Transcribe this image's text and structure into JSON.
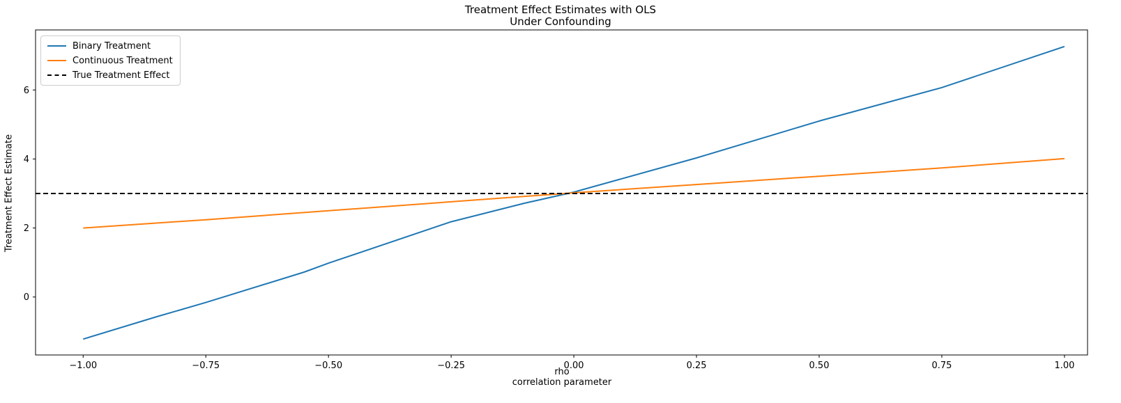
{
  "chart_data": {
    "type": "line",
    "title_line1": "Treatment Effect Estimates with OLS",
    "title_line2": "Under Confounding",
    "ylabel": "Treatment Effect Estimate",
    "xlabel_line1": "rho",
    "xlabel_line2": "correlation parameter",
    "xlim": [
      -1.097,
      1.047
    ],
    "ylim": [
      -1.68,
      7.74
    ],
    "grid": false,
    "legend_position": "upper left",
    "xticks": [
      {
        "v": -1.0,
        "label": "−1.00"
      },
      {
        "v": -0.75,
        "label": "−0.75"
      },
      {
        "v": -0.5,
        "label": "−0.50"
      },
      {
        "v": -0.25,
        "label": "−0.25"
      },
      {
        "v": 0.0,
        "label": "0.00"
      },
      {
        "v": 0.25,
        "label": "0.25"
      },
      {
        "v": 0.5,
        "label": "0.50"
      },
      {
        "v": 0.75,
        "label": "0.75"
      },
      {
        "v": 1.0,
        "label": "1.00"
      }
    ],
    "yticks": [
      {
        "v": 0,
        "label": "0"
      },
      {
        "v": 2,
        "label": "2"
      },
      {
        "v": 4,
        "label": "4"
      },
      {
        "v": 6,
        "label": "6"
      }
    ],
    "series": [
      {
        "name": "Binary Treatment",
        "color": "#1f77b4",
        "style": "solid",
        "points": [
          [
            -1.0,
            -1.22
          ],
          [
            -0.85,
            -0.57
          ],
          [
            -0.75,
            -0.16
          ],
          [
            -0.55,
            0.72
          ],
          [
            -0.5,
            0.98
          ],
          [
            -0.25,
            2.18
          ],
          [
            -0.1,
            2.72
          ],
          [
            0.0,
            3.04
          ],
          [
            0.25,
            4.03
          ],
          [
            0.5,
            5.1
          ],
          [
            0.75,
            6.07
          ],
          [
            1.0,
            7.26
          ]
        ]
      },
      {
        "name": "Continuous Treatment",
        "color": "#ff7f0e",
        "style": "solid",
        "points": [
          [
            -1.0,
            2.0
          ],
          [
            -0.75,
            2.24
          ],
          [
            -0.5,
            2.5
          ],
          [
            -0.25,
            2.76
          ],
          [
            0.0,
            3.02
          ],
          [
            0.25,
            3.26
          ],
          [
            0.5,
            3.5
          ],
          [
            0.75,
            3.74
          ],
          [
            1.0,
            4.01
          ]
        ]
      },
      {
        "name": "True Treatment Effect",
        "color": "#000000",
        "style": "dashed",
        "y_const": 3
      }
    ]
  }
}
